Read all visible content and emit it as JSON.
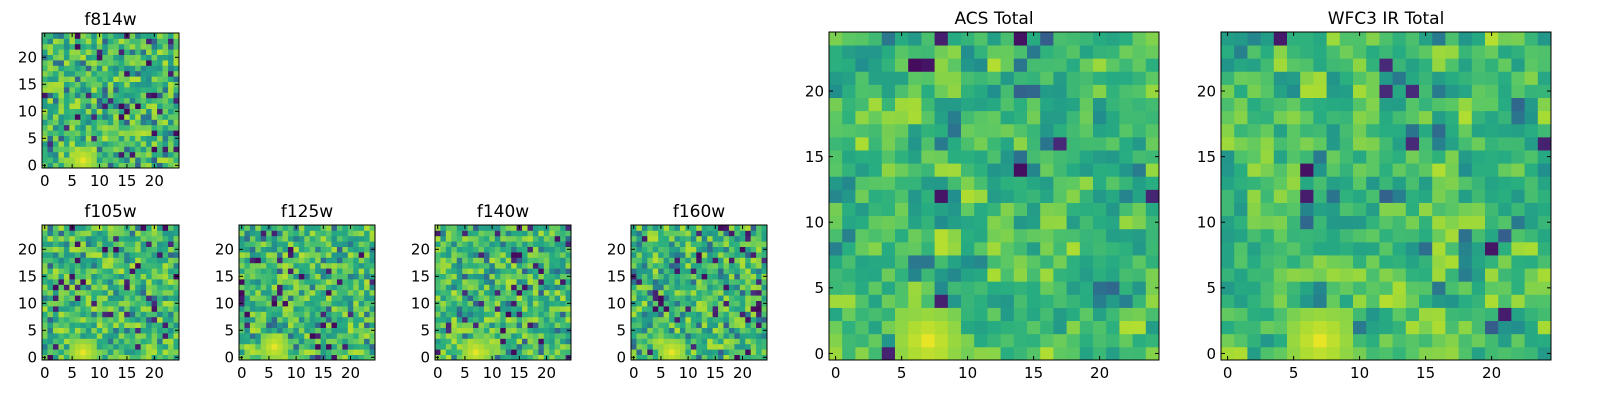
{
  "chart_data": [
    {
      "type": "heatmap",
      "title": "f814w",
      "colormap": "viridis",
      "grid_size": 25,
      "xlim": [
        -0.5,
        24.5
      ],
      "ylim": [
        -0.5,
        24.5
      ],
      "xticks": [
        0,
        5,
        10,
        15,
        20
      ],
      "yticks": [
        0,
        5,
        10,
        15,
        20
      ],
      "bright_spot": {
        "x": 7,
        "y": 1
      },
      "pixel_scale": 1
    },
    {
      "type": "heatmap",
      "title": "f105w",
      "colormap": "viridis",
      "grid_size": 25,
      "xlim": [
        -0.5,
        24.5
      ],
      "ylim": [
        -0.5,
        24.5
      ],
      "xticks": [
        0,
        5,
        10,
        15,
        20
      ],
      "yticks": [
        0,
        5,
        10,
        15,
        20
      ],
      "bright_spot": {
        "x": 7,
        "y": 1
      },
      "pixel_scale": 1
    },
    {
      "type": "heatmap",
      "title": "f125w",
      "colormap": "viridis",
      "grid_size": 25,
      "xlim": [
        -0.5,
        24.5
      ],
      "ylim": [
        -0.5,
        24.5
      ],
      "xticks": [
        0,
        5,
        10,
        15,
        20
      ],
      "yticks": [
        0,
        5,
        10,
        15,
        20
      ],
      "bright_spot": {
        "x": 6,
        "y": 2
      },
      "pixel_scale": 1
    },
    {
      "type": "heatmap",
      "title": "f140w",
      "colormap": "viridis",
      "grid_size": 25,
      "xlim": [
        -0.5,
        24.5
      ],
      "ylim": [
        -0.5,
        24.5
      ],
      "xticks": [
        0,
        5,
        10,
        15,
        20
      ],
      "yticks": [
        0,
        5,
        10,
        15,
        20
      ],
      "bright_spot": {
        "x": 7,
        "y": 1
      },
      "pixel_scale": 1
    },
    {
      "type": "heatmap",
      "title": "f160w",
      "colormap": "viridis",
      "grid_size": 25,
      "xlim": [
        -0.5,
        24.5
      ],
      "ylim": [
        -0.5,
        24.5
      ],
      "xticks": [
        0,
        5,
        10,
        15,
        20
      ],
      "yticks": [
        0,
        5,
        10,
        15,
        20
      ],
      "bright_spot": {
        "x": 7,
        "y": 1
      },
      "pixel_scale": 1
    },
    {
      "type": "heatmap",
      "title": "ACS Total",
      "colormap": "viridis",
      "grid_size": 25,
      "xlim": [
        -0.5,
        24.5
      ],
      "ylim": [
        -0.5,
        24.5
      ],
      "xticks": [
        0,
        5,
        10,
        15,
        20
      ],
      "yticks": [
        0,
        5,
        10,
        15,
        20
      ],
      "bright_spot": {
        "x": 7,
        "y": 1
      },
      "pixel_scale": 2
    },
    {
      "type": "heatmap",
      "title": "WFC3 IR Total",
      "colormap": "viridis",
      "grid_size": 25,
      "xlim": [
        -0.5,
        24.5
      ],
      "ylim": [
        -0.5,
        24.5
      ],
      "xticks": [
        0,
        5,
        10,
        15,
        20
      ],
      "yticks": [
        0,
        5,
        10,
        15,
        20
      ],
      "bright_spot": {
        "x": 7,
        "y": 1
      },
      "pixel_scale": 2
    }
  ],
  "colors": {
    "axis": "#000000",
    "background": "#ffffff"
  }
}
